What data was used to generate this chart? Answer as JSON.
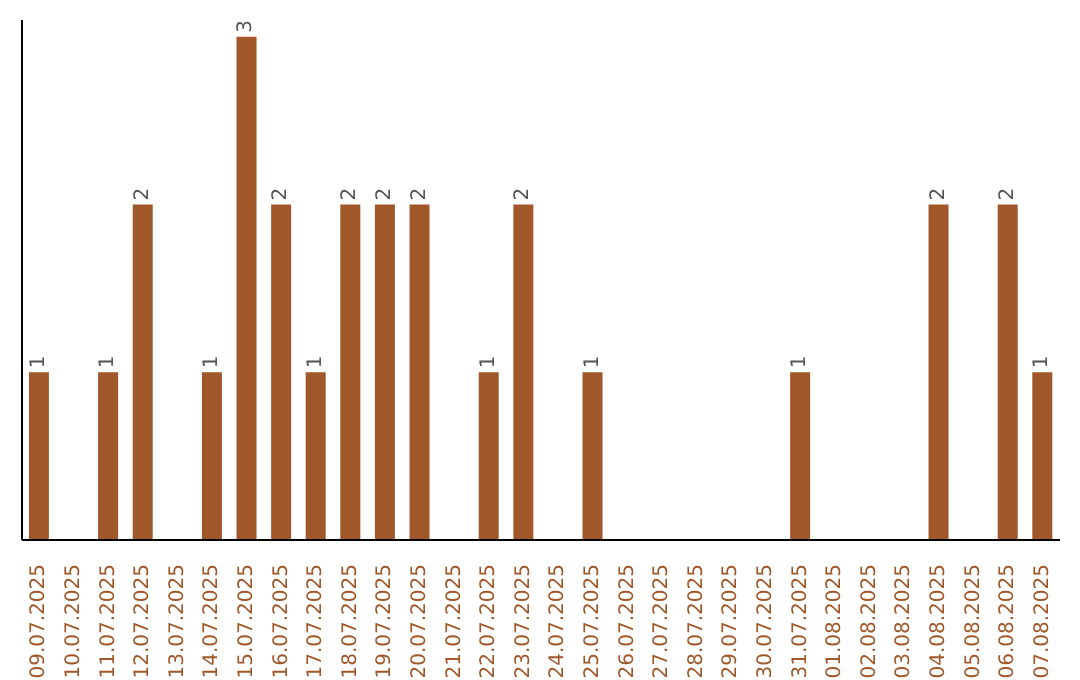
{
  "chart_data": {
    "type": "bar",
    "categories": [
      "09.07.2025",
      "10.07.2025",
      "11.07.2025",
      "12.07.2025",
      "13.07.2025",
      "14.07.2025",
      "15.07.2025",
      "16.07.2025",
      "17.07.2025",
      "18.07.2025",
      "19.07.2025",
      "20.07.2025",
      "21.07.2025",
      "22.07.2025",
      "23.07.2025",
      "24.07.2025",
      "25.07.2025",
      "26.07.2025",
      "27.07.2025",
      "28.07.2025",
      "29.07.2025",
      "30.07.2025",
      "31.07.2025",
      "01.08.2025",
      "02.08.2025",
      "03.08.2025",
      "04.08.2025",
      "05.08.2025",
      "06.08.2025",
      "07.08.2025"
    ],
    "values": [
      1,
      0,
      1,
      2,
      0,
      1,
      3,
      2,
      1,
      2,
      2,
      2,
      0,
      1,
      2,
      0,
      1,
      0,
      0,
      0,
      0,
      0,
      1,
      0,
      0,
      0,
      2,
      0,
      2,
      1
    ],
    "value_labels": [
      "1",
      null,
      "1",
      "2",
      null,
      "1",
      "3",
      "2",
      "1",
      "2",
      "2",
      "2",
      null,
      "1",
      "2",
      null,
      "1",
      null,
      null,
      null,
      null,
      null,
      "1",
      null,
      null,
      null,
      "2",
      null,
      "2",
      "1"
    ],
    "color": "#a0582a",
    "ylim": [
      0,
      3.1
    ],
    "grid": false,
    "legend": false
  }
}
